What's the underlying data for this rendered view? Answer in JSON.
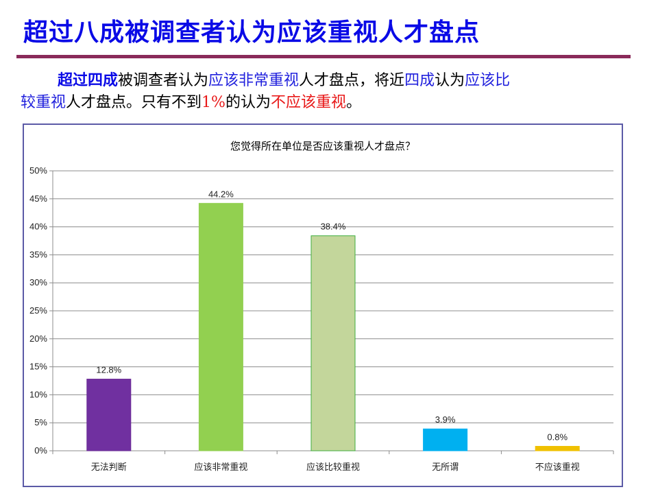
{
  "slide": {
    "title": "超过八成被调查者认为应该重视人才盘点",
    "title_color": "#0a0ae6",
    "rule_color": "#8a2a5a"
  },
  "summary": {
    "seg1": "超过四成",
    "seg2": "被调查者认为",
    "seg3": "应该非常重视",
    "seg4": "人才盘点，将近",
    "seg5": "四成",
    "seg6": "认为",
    "seg7": "应该比",
    "seg8": "较重视",
    "seg9": "人才盘点。只有不到",
    "seg10": "1%",
    "seg11": "的认为",
    "seg12": "不应该重视",
    "seg13": "。"
  },
  "chart_data": {
    "type": "bar",
    "title": "您觉得所在单位是否应该重视人才盘点？",
    "categories": [
      "无法判断",
      "应该非常重视",
      "应该比较重视",
      "无所谓",
      "不应该重视"
    ],
    "values": [
      12.8,
      44.2,
      38.4,
      3.9,
      0.8
    ],
    "data_labels": [
      "12.8%",
      "44.2%",
      "38.4%",
      "3.9%",
      "0.8%"
    ],
    "colors": [
      "#7030a0",
      "#92d050",
      "#c3d69b",
      "#00b0f0",
      "#f0c000"
    ],
    "bar_border_colors": [
      "#6a2a96",
      "#92d050",
      "#3fae3f",
      "#00b0f0",
      "#f0c000"
    ],
    "ylim": [
      0,
      50
    ],
    "yticks": [
      0,
      5,
      10,
      15,
      20,
      25,
      30,
      35,
      40,
      45,
      50
    ],
    "ytick_labels": [
      "0%",
      "5%",
      "10%",
      "15%",
      "20%",
      "25%",
      "30%",
      "35%",
      "40%",
      "45%",
      "50%"
    ],
    "grid": true,
    "xlabel": "",
    "ylabel": ""
  }
}
